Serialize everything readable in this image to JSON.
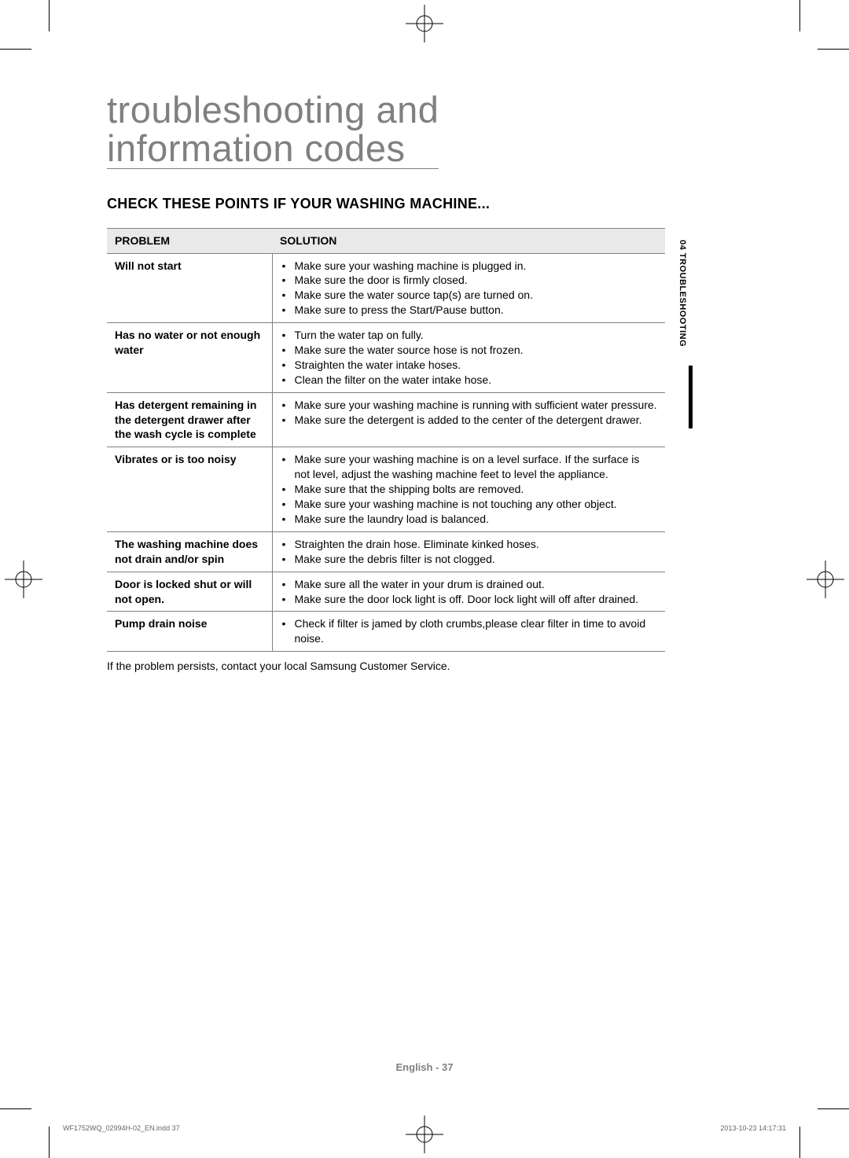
{
  "title_line1": "troubleshooting and",
  "title_line2": "information codes",
  "subtitle": "CHECK THESE POINTS IF YOUR WASHING MACHINE...",
  "side_tab": "04  TROUBLESHOOTING",
  "table": {
    "head_problem": "PROBLEM",
    "head_solution": "SOLUTION",
    "rows": [
      {
        "problem": "Will not start",
        "solutions": [
          "Make sure your washing machine is plugged in.",
          "Make sure the door is firmly closed.",
          "Make sure the water source tap(s) are turned on.",
          "Make sure to press the Start/Pause button."
        ]
      },
      {
        "problem": "Has no water or not enough water",
        "solutions": [
          "Turn the water tap on fully.",
          "Make sure the water source hose is not frozen.",
          "Straighten the water intake hoses.",
          "Clean the filter on the water intake hose."
        ]
      },
      {
        "problem": "Has detergent remaining in the detergent drawer after the wash cycle is complete",
        "solutions": [
          "Make sure your washing machine is running with sufficient water pressure.",
          "Make sure the detergent is added to the center of the detergent drawer."
        ]
      },
      {
        "problem": "Vibrates or is too noisy",
        "solutions": [
          "Make sure your washing machine is on a level surface. If the surface is not level, adjust the washing machine feet to level the appliance.",
          "Make sure that the shipping bolts are removed.",
          "Make sure your washing machine is not touching any other object.",
          "Make sure the laundry load is balanced."
        ]
      },
      {
        "problem": "The washing machine does not drain and/or spin",
        "solutions": [
          "Straighten the drain hose. Eliminate kinked hoses.",
          "Make sure the debris filter is not clogged."
        ]
      },
      {
        "problem": "Door is locked shut or will not open.",
        "solutions": [
          "Make sure all the water in your drum is drained out.",
          "Make sure the door lock light is off. Door lock light will off after drained."
        ]
      },
      {
        "problem": "Pump drain noise",
        "solutions": [
          "Check if filter is jamed by cloth crumbs,please clear filter in time to avoid noise."
        ]
      }
    ]
  },
  "footnote": "If the problem persists, contact your local Samsung Customer Service.",
  "page_footer": "English - 37",
  "imprint_left": "WF1752WQ_02994H-02_EN.indd   37",
  "imprint_right": "2013-10-23   14:17:31",
  "colors": {
    "title_gray": "#808080",
    "header_bg": "#e9e9e9",
    "border": "#808080",
    "footer_gray": "#808080",
    "imprint_gray": "#666666",
    "black": "#000000",
    "bg": "#ffffff"
  }
}
